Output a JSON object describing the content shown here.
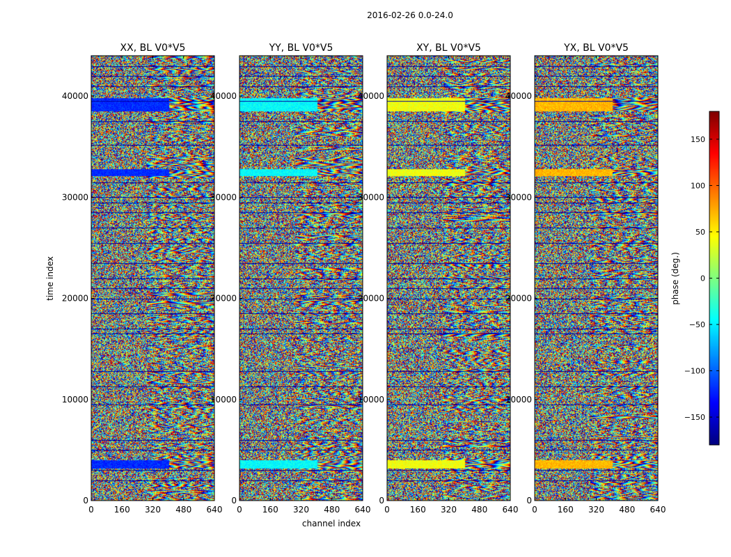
{
  "chart_data": {
    "type": "heatmap",
    "suptitle": "2016-02-26 0.0-24.0",
    "xlabel": "channel index",
    "ylabel": "time index",
    "xlim": [
      0,
      640
    ],
    "ylim": [
      0,
      44000
    ],
    "x_ticks": [
      0,
      160,
      320,
      480,
      640
    ],
    "x_tick_labels": [
      "0",
      "160",
      "320",
      "480",
      "640"
    ],
    "y_ticks": [
      0,
      10000,
      20000,
      30000,
      40000
    ],
    "y_tick_labels": [
      "0",
      "10000",
      "20000",
      "30000",
      "40000"
    ],
    "panels": [
      {
        "title": "XX, BL V0*V5",
        "pol": "XX",
        "band_phase_deg": -120
      },
      {
        "title": "YY, BL V0*V5",
        "pol": "YY",
        "band_phase_deg": -45
      },
      {
        "title": "XY, BL V0*V5",
        "pol": "XY",
        "band_phase_deg": 40
      },
      {
        "title": "YX, BL V0*V5",
        "pol": "YX",
        "band_phase_deg": 70
      }
    ],
    "colorbar": {
      "label": "phase (deg.)",
      "range": [
        -180,
        180
      ],
      "ticks": [
        -150,
        -100,
        -50,
        0,
        50,
        100,
        150
      ],
      "tick_labels": [
        "−150",
        "−100",
        "−50",
        "0",
        "50",
        "100",
        "150"
      ],
      "colormap": "jet"
    },
    "dark_rows_time_index": [
      2000,
      3000,
      5000,
      6000,
      9500,
      11300,
      12800,
      16500,
      17000,
      18500,
      20000,
      21000,
      22000,
      23500,
      25500,
      27000,
      28500,
      29500,
      30000,
      31500,
      35200,
      37500,
      39500,
      41000,
      42000,
      43000
    ],
    "bright_bands_time_index": [
      [
        3200,
        4000
      ],
      [
        32100,
        32800
      ],
      [
        38500,
        39800
      ]
    ]
  }
}
